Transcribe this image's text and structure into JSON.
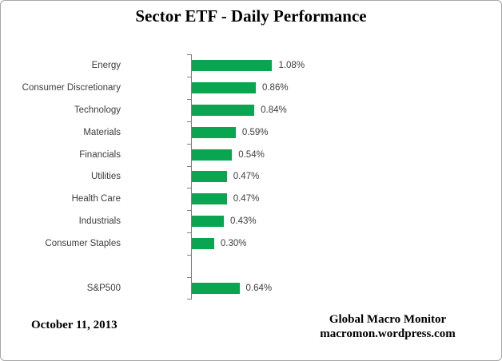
{
  "chart_data": {
    "type": "bar",
    "orientation": "horizontal",
    "title": "Sector ETF - Daily Performance",
    "categories": [
      "Energy",
      "Consumer Discretionary",
      "Technology",
      "Materials",
      "Financials",
      "Utilities",
      "Health Care",
      "Industrials",
      "Consumer Staples",
      "",
      "S&P500"
    ],
    "values": [
      1.08,
      0.86,
      0.84,
      0.59,
      0.54,
      0.47,
      0.47,
      0.43,
      0.3,
      null,
      0.64
    ],
    "value_labels": [
      "1.08%",
      "0.86%",
      "0.84%",
      "0.59%",
      "0.54%",
      "0.47%",
      "0.47%",
      "0.43%",
      "0.30%",
      "",
      "0.64%"
    ],
    "xlabel": "",
    "ylabel": "",
    "xlim": [
      0,
      1.2
    ],
    "grid": false,
    "legend": false,
    "bar_color": "#0aa551",
    "axis_color": "#808080",
    "label_color": "#3d3d3d"
  },
  "footer": {
    "date": "October 11, 2013",
    "credit_line1": "Global Macro Monitor",
    "credit_line2": "macromon.wordpress.com"
  }
}
